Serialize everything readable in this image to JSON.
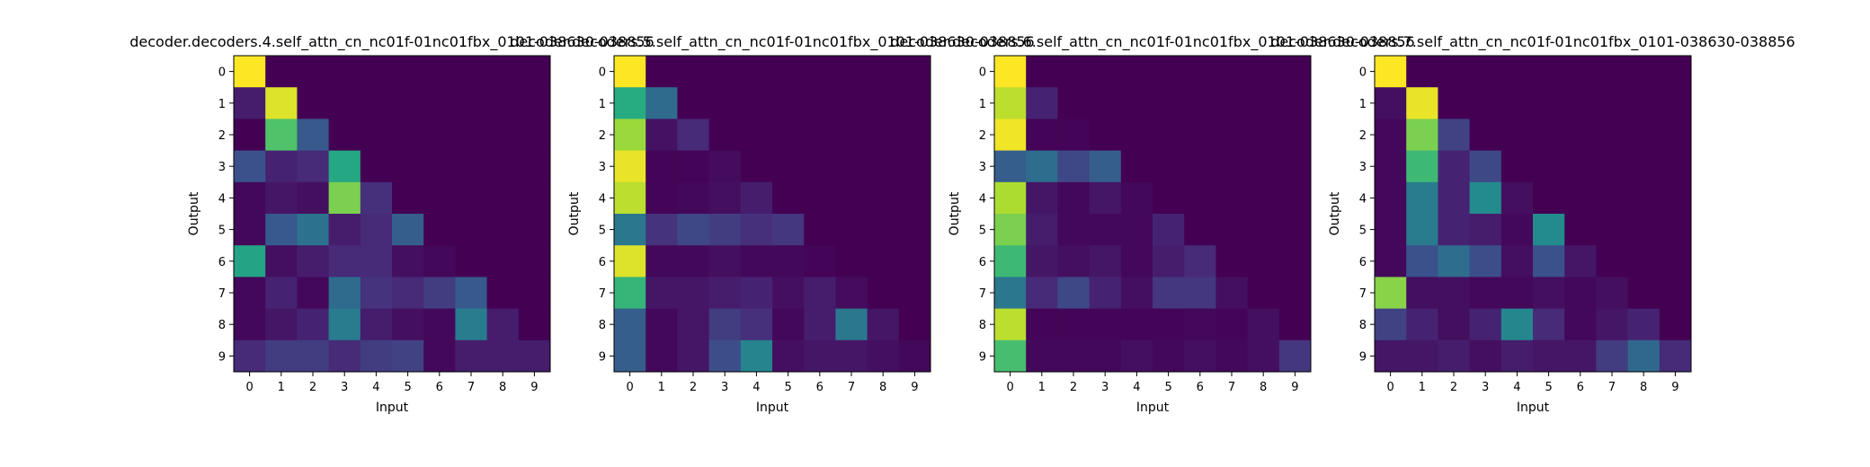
{
  "colormap": "viridis",
  "chart_data": [
    {
      "type": "heatmap",
      "title": "decoder.decoders.4.self_attn_cn_nc01f-01nc01fbx_0101-038630-038856",
      "xlabel": "Input",
      "ylabel": "Output",
      "x_ticks": [
        "0",
        "1",
        "2",
        "3",
        "4",
        "5",
        "6",
        "7",
        "8",
        "9"
      ],
      "y_ticks": [
        "0",
        "1",
        "2",
        "3",
        "4",
        "5",
        "6",
        "7",
        "8",
        "9"
      ],
      "values": [
        [
          1.0,
          0,
          0,
          0,
          0,
          0,
          0,
          0,
          0,
          0
        ],
        [
          0.08,
          0.95,
          0,
          0,
          0,
          0,
          0,
          0,
          0,
          0
        ],
        [
          0.0,
          0.72,
          0.28,
          0,
          0,
          0,
          0,
          0,
          0,
          0
        ],
        [
          0.25,
          0.1,
          0.12,
          0.6,
          0,
          0,
          0,
          0,
          0,
          0
        ],
        [
          0.02,
          0.06,
          0.04,
          0.8,
          0.14,
          0,
          0,
          0,
          0,
          0
        ],
        [
          0.02,
          0.28,
          0.38,
          0.08,
          0.12,
          0.3,
          0,
          0,
          0,
          0
        ],
        [
          0.58,
          0.04,
          0.08,
          0.12,
          0.12,
          0.04,
          0.02,
          0,
          0,
          0
        ],
        [
          0.02,
          0.1,
          0.02,
          0.35,
          0.15,
          0.12,
          0.18,
          0.28,
          0,
          0
        ],
        [
          0.02,
          0.06,
          0.1,
          0.42,
          0.08,
          0.04,
          0.02,
          0.42,
          0.08,
          0
        ],
        [
          0.12,
          0.18,
          0.18,
          0.12,
          0.18,
          0.2,
          0.02,
          0.08,
          0.08,
          0.08
        ]
      ]
    },
    {
      "type": "heatmap",
      "title": "decoder.decoders.5.self_attn_cn_nc01f-01nc01fbx_0101-038630-038856",
      "xlabel": "Input",
      "ylabel": "Output",
      "x_ticks": [
        "0",
        "1",
        "2",
        "3",
        "4",
        "5",
        "6",
        "7",
        "8",
        "9"
      ],
      "y_ticks": [
        "0",
        "1",
        "2",
        "3",
        "4",
        "5",
        "6",
        "7",
        "8",
        "9"
      ],
      "values": [
        [
          1.0,
          0,
          0,
          0,
          0,
          0,
          0,
          0,
          0,
          0
        ],
        [
          0.62,
          0.35,
          0,
          0,
          0,
          0,
          0,
          0,
          0,
          0
        ],
        [
          0.85,
          0.05,
          0.12,
          0,
          0,
          0,
          0,
          0,
          0,
          0
        ],
        [
          0.97,
          0.01,
          0.01,
          0.03,
          0,
          0,
          0,
          0,
          0,
          0
        ],
        [
          0.9,
          0.01,
          0.02,
          0.04,
          0.08,
          0,
          0,
          0,
          0,
          0
        ],
        [
          0.4,
          0.15,
          0.22,
          0.18,
          0.14,
          0.16,
          0,
          0,
          0,
          0
        ],
        [
          0.95,
          0.02,
          0.02,
          0.04,
          0.02,
          0.02,
          0.01,
          0,
          0,
          0
        ],
        [
          0.66,
          0.06,
          0.06,
          0.08,
          0.1,
          0.04,
          0.08,
          0.03,
          0,
          0
        ],
        [
          0.3,
          0.02,
          0.06,
          0.18,
          0.14,
          0.02,
          0.08,
          0.4,
          0.06,
          0
        ],
        [
          0.3,
          0.02,
          0.06,
          0.24,
          0.45,
          0.04,
          0.06,
          0.06,
          0.04,
          0.02
        ]
      ]
    },
    {
      "type": "heatmap",
      "title": "decoder.decoders.6.self_attn_cn_nc01f-01nc01fbx_0101-038630-038856",
      "xlabel": "Input",
      "ylabel": "Output",
      "x_ticks": [
        "0",
        "1",
        "2",
        "3",
        "4",
        "5",
        "6",
        "7",
        "8",
        "9"
      ],
      "y_ticks": [
        "0",
        "1",
        "2",
        "3",
        "4",
        "5",
        "6",
        "7",
        "8",
        "9"
      ],
      "values": [
        [
          1.0,
          0,
          0,
          0,
          0,
          0,
          0,
          0,
          0,
          0
        ],
        [
          0.9,
          0.1,
          0,
          0,
          0,
          0,
          0,
          0,
          0,
          0
        ],
        [
          0.98,
          0.01,
          0.01,
          0,
          0,
          0,
          0,
          0,
          0,
          0
        ],
        [
          0.3,
          0.36,
          0.22,
          0.3,
          0,
          0,
          0,
          0,
          0,
          0
        ],
        [
          0.88,
          0.06,
          0.02,
          0.06,
          0.02,
          0,
          0,
          0,
          0,
          0
        ],
        [
          0.8,
          0.08,
          0.02,
          0.02,
          0.02,
          0.1,
          0,
          0,
          0,
          0
        ],
        [
          0.68,
          0.06,
          0.04,
          0.06,
          0.02,
          0.08,
          0.12,
          0,
          0,
          0
        ],
        [
          0.4,
          0.12,
          0.22,
          0.1,
          0.04,
          0.16,
          0.16,
          0.04,
          0,
          0
        ],
        [
          0.9,
          0.01,
          0.01,
          0.01,
          0.01,
          0.01,
          0.02,
          0.01,
          0.04,
          0
        ],
        [
          0.7,
          0.02,
          0.02,
          0.02,
          0.04,
          0.02,
          0.04,
          0.02,
          0.04,
          0.16
        ]
      ]
    },
    {
      "type": "heatmap",
      "title": "decoder.decoders.7.self_attn_cn_nc01f-01nc01fbx_0101-038630-038856",
      "xlabel": "Input",
      "ylabel": "Output",
      "x_ticks": [
        "0",
        "1",
        "2",
        "3",
        "4",
        "5",
        "6",
        "7",
        "8",
        "9"
      ],
      "y_ticks": [
        "0",
        "1",
        "2",
        "3",
        "4",
        "5",
        "6",
        "7",
        "8",
        "9"
      ],
      "values": [
        [
          1.0,
          0,
          0,
          0,
          0,
          0,
          0,
          0,
          0,
          0
        ],
        [
          0.04,
          0.97,
          0,
          0,
          0,
          0,
          0,
          0,
          0,
          0
        ],
        [
          0.02,
          0.8,
          0.2,
          0,
          0,
          0,
          0,
          0,
          0,
          0
        ],
        [
          0.02,
          0.68,
          0.1,
          0.22,
          0,
          0,
          0,
          0,
          0,
          0
        ],
        [
          0.02,
          0.42,
          0.1,
          0.48,
          0.04,
          0,
          0,
          0,
          0,
          0
        ],
        [
          0.02,
          0.42,
          0.1,
          0.08,
          0.02,
          0.48,
          0,
          0,
          0,
          0
        ],
        [
          0.02,
          0.25,
          0.36,
          0.24,
          0.04,
          0.25,
          0.06,
          0,
          0,
          0
        ],
        [
          0.82,
          0.04,
          0.04,
          0.02,
          0.02,
          0.04,
          0.02,
          0.04,
          0,
          0
        ],
        [
          0.2,
          0.1,
          0.04,
          0.1,
          0.46,
          0.12,
          0.02,
          0.06,
          0.1,
          0
        ],
        [
          0.06,
          0.06,
          0.08,
          0.04,
          0.08,
          0.06,
          0.06,
          0.18,
          0.34,
          0.12
        ]
      ]
    }
  ]
}
